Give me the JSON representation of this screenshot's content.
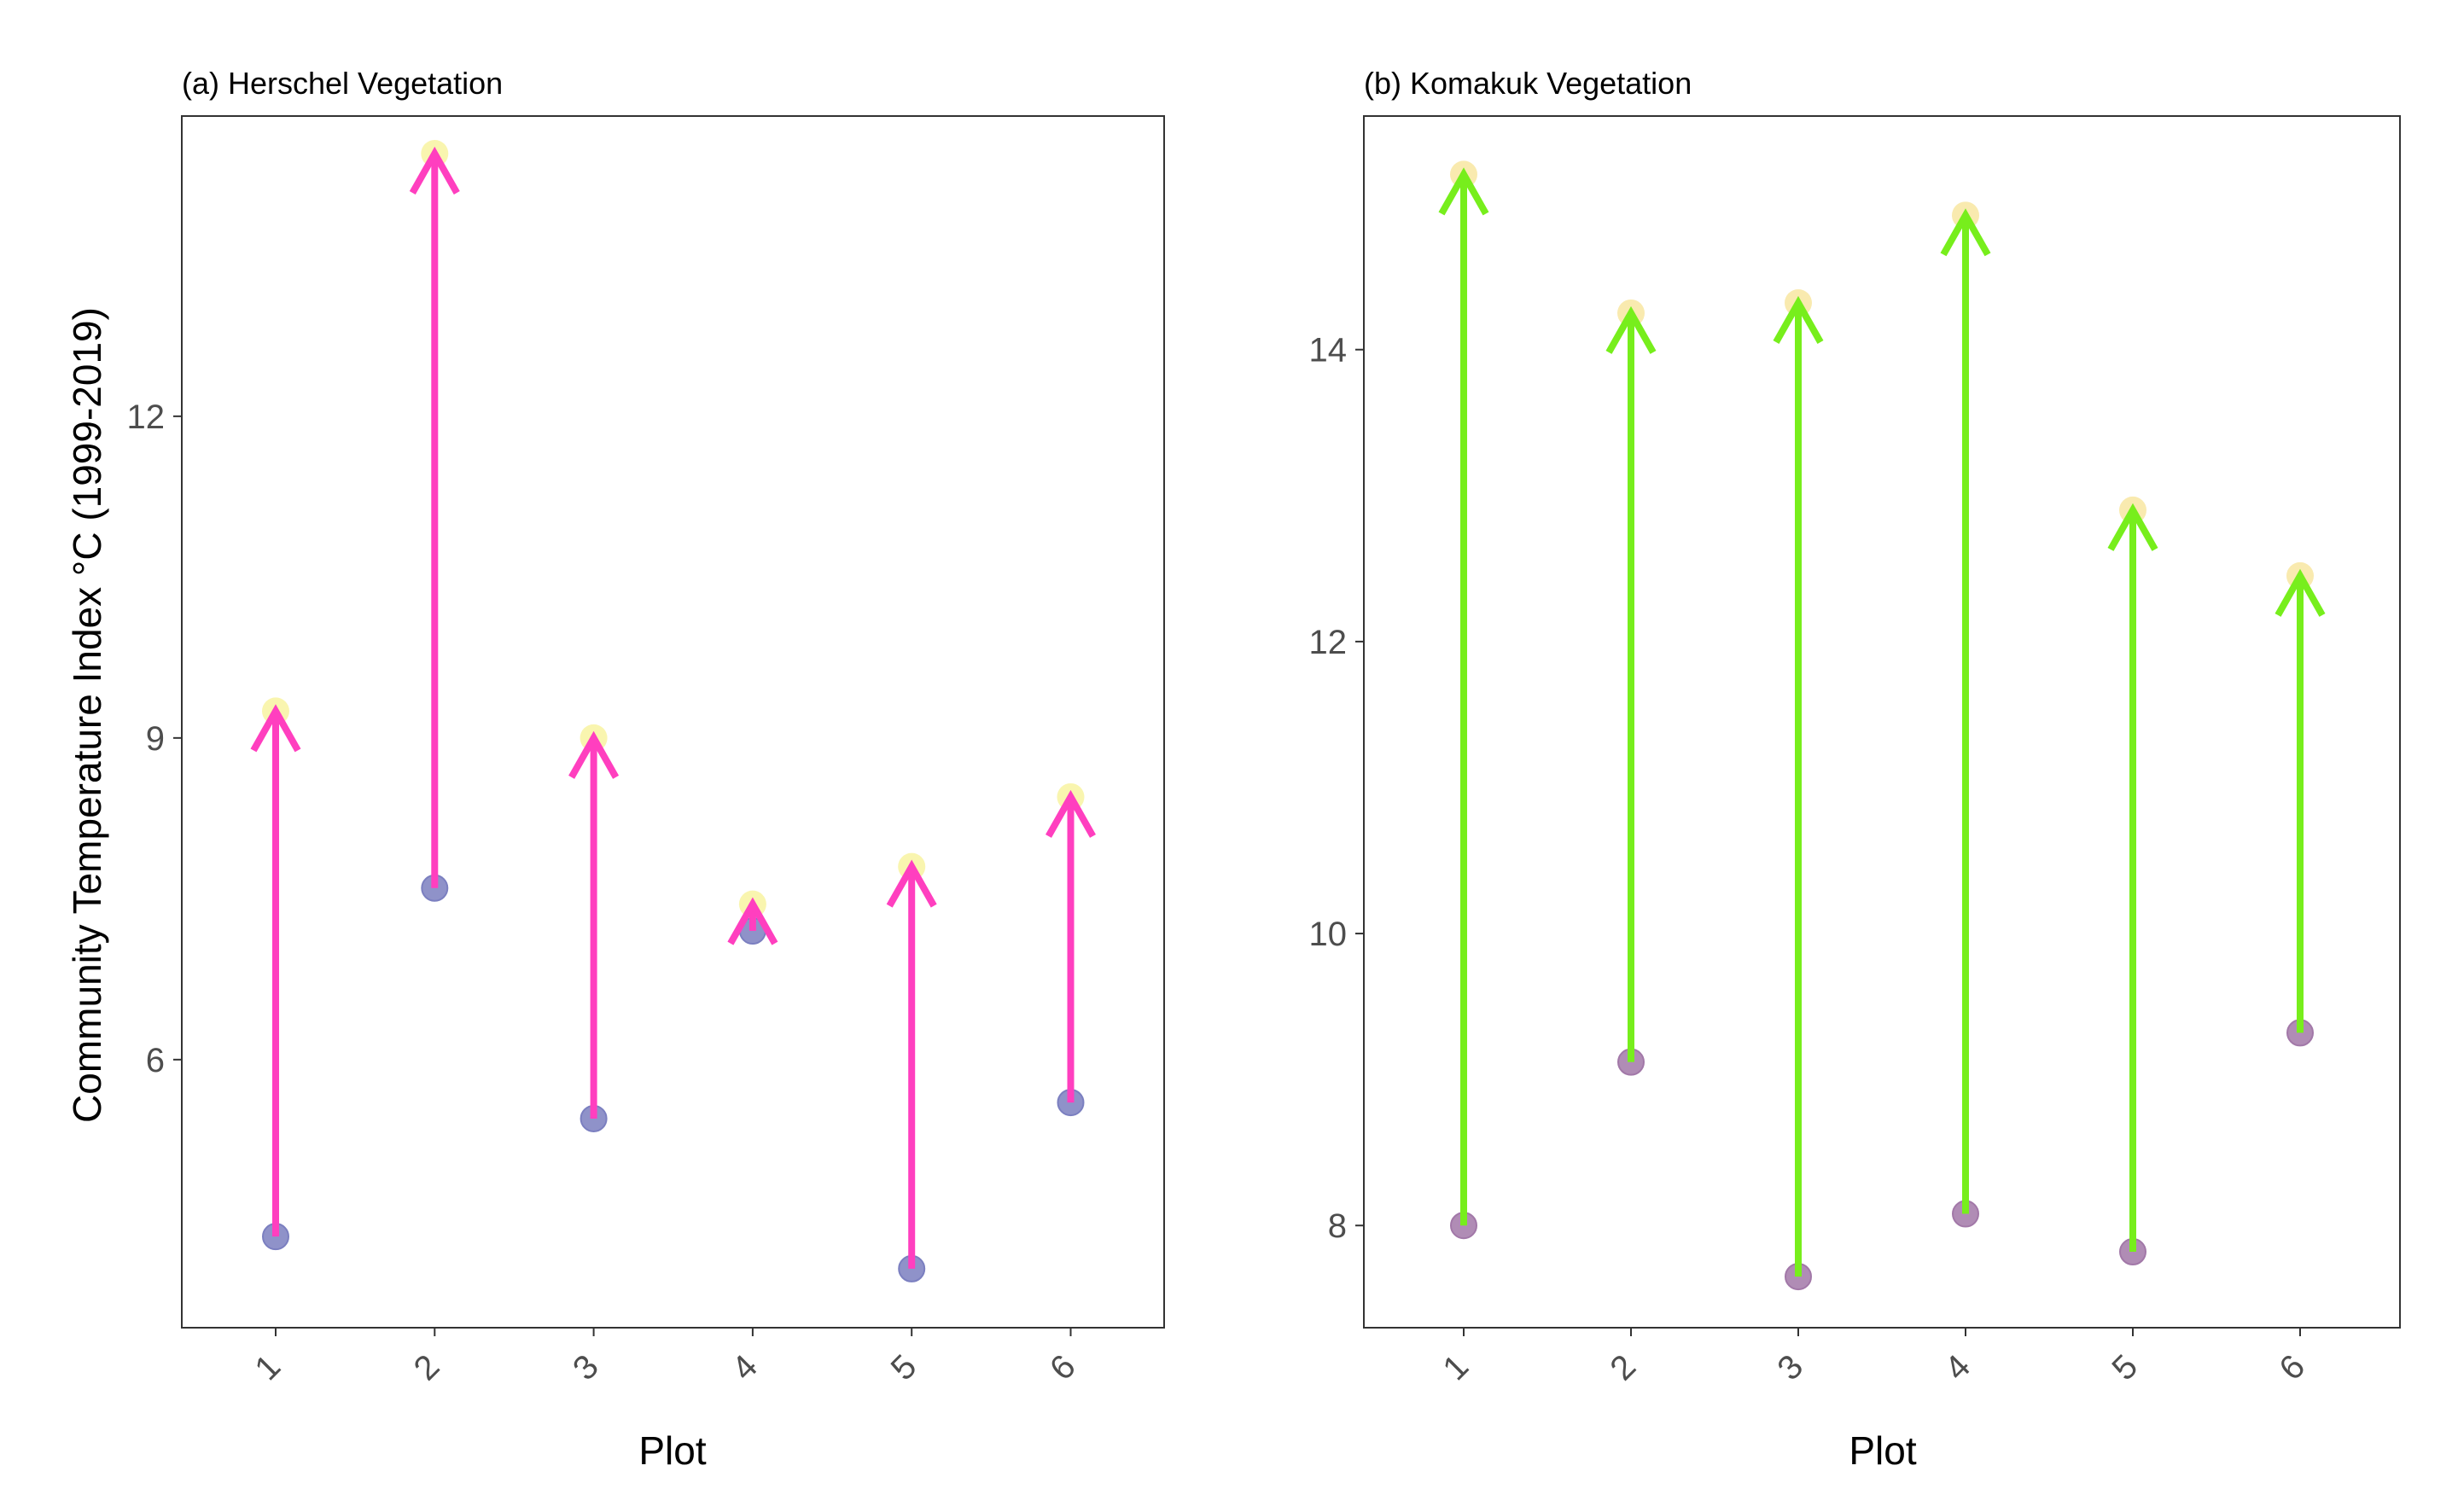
{
  "chart_data": [
    {
      "type": "arrow-dot",
      "title": "(a) Herschel Vegetation",
      "xlabel": "Plot",
      "ylabel": "Community Temperature Index °C (1999-2019)",
      "categories": [
        "1",
        "2",
        "3",
        "4",
        "5",
        "6"
      ],
      "ylim": [
        3.5,
        14.8
      ],
      "yticks": [
        6,
        9,
        12
      ],
      "series": [
        {
          "values": [
            4.35,
            7.6,
            5.45,
            7.2,
            4.05,
            5.6
          ]
        },
        {
          "values": [
            9.25,
            14.45,
            9.0,
            7.45,
            7.8,
            8.45
          ]
        }
      ],
      "colors": {
        "start": "#7b7fc0",
        "end": "#f7f29b",
        "arrow": "#ff3fbf"
      },
      "grid": false
    },
    {
      "type": "arrow-dot",
      "title": "(b) Komakuk Vegetation",
      "xlabel": "Plot",
      "ylabel": "",
      "categories": [
        "1",
        "2",
        "3",
        "4",
        "5",
        "6"
      ],
      "ylim": [
        7.3,
        15.6
      ],
      "yticks": [
        8,
        10,
        12,
        14
      ],
      "series": [
        {
          "values": [
            8.0,
            9.12,
            7.65,
            8.08,
            7.82,
            9.32
          ]
        },
        {
          "values": [
            15.2,
            14.25,
            14.32,
            14.92,
            12.9,
            12.45
          ]
        }
      ],
      "colors": {
        "start": "#a278a8",
        "end": "#f7e59b",
        "arrow": "#77ee1c"
      },
      "grid": false
    }
  ]
}
